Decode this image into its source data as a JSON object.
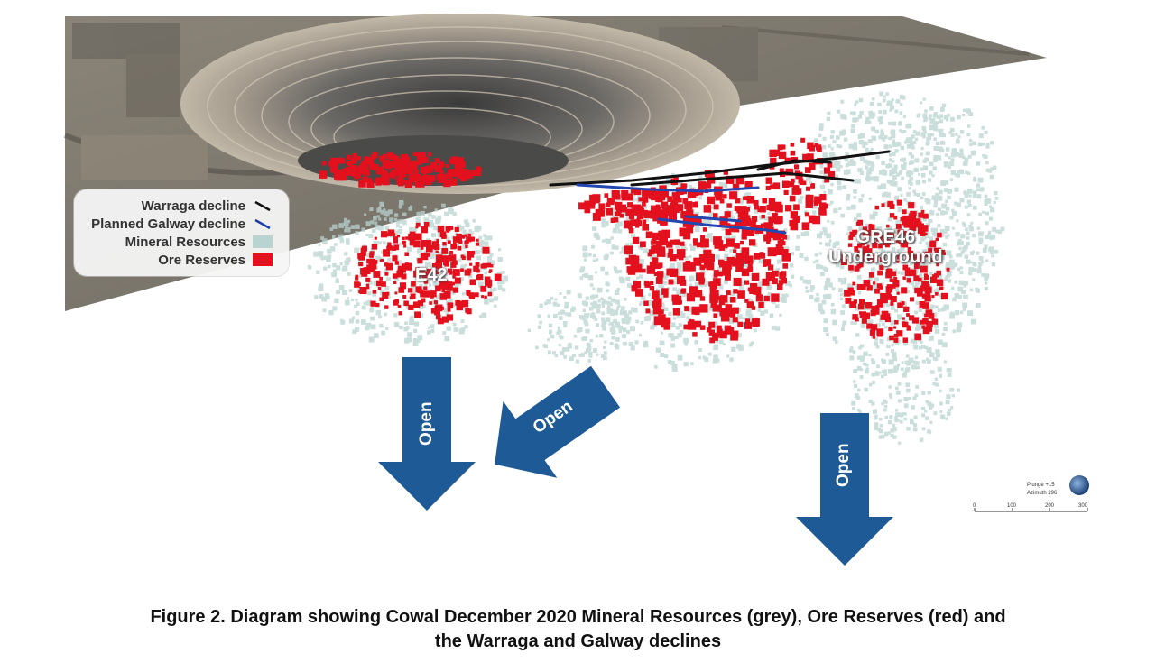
{
  "legend": {
    "items": [
      {
        "label": "Warraga decline",
        "symbol": "black-line",
        "color": "#111111"
      },
      {
        "label": "Planned Galway decline",
        "symbol": "blue-line",
        "color": "#1f3fa8"
      },
      {
        "label": "Mineral Resources",
        "symbol": "grey-box",
        "color": "#b9d3d0"
      },
      {
        "label": "Ore Reserves",
        "symbol": "red-box",
        "color": "#e3101e"
      }
    ]
  },
  "labels": {
    "e42": "E42",
    "gre46": "GRE46\nUnderground"
  },
  "arrows": [
    "Open",
    "Open",
    "Open"
  ],
  "arrow_color": "#1d5a96",
  "orientation": {
    "plunge": "Plunge +15",
    "azimuth": "Azimuth 296",
    "scale_ticks": [
      "0",
      "100",
      "200",
      "300"
    ]
  },
  "caption": {
    "line1": "Figure 2. Diagram showing Cowal December 2020 Mineral Resources (grey), Ore Reserves (red) and",
    "line2": "the Warraga and Galway declines"
  }
}
